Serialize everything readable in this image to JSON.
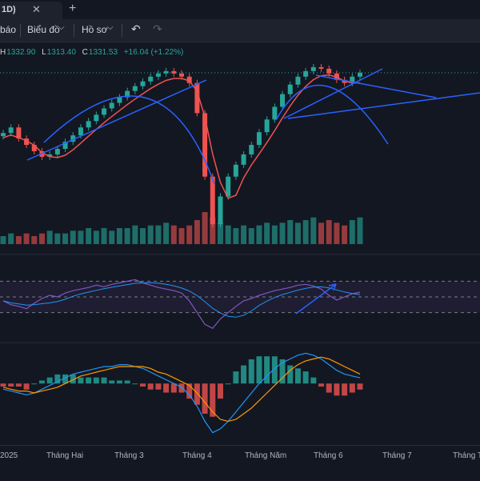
{
  "window": {
    "tab_label": "1D)",
    "close_glyph": "✕",
    "add_glyph": "+"
  },
  "toolbar": {
    "alerts_label": "báo",
    "charts_label": "Biểu đồ",
    "profile_label": "Hồ sơ",
    "chevron": "⌵",
    "undo_glyph": "↶",
    "redo_glyph": "↷"
  },
  "ohlc": {
    "h_key": "H",
    "h_val": "1332.90",
    "l_key": "L",
    "l_val": "1313.40",
    "c_key": "C",
    "c_val": "1331.53",
    "change": "+16.04 (+1.22%)"
  },
  "colors": {
    "up": "#26a69a",
    "down": "#ef5350",
    "trend": "#2962ff",
    "ma": "#ef5350",
    "rsi": "#7e57c2",
    "signal": "#ff9800",
    "macd": "#2196f3"
  },
  "chart_data": {
    "type": "candlestick",
    "x_ticks": [
      "2025",
      "Tháng Hai",
      "Tháng 3",
      "Tháng 4",
      "Tháng Năm",
      "Tháng 6",
      "Tháng 7",
      "Tháng Tá"
    ],
    "price_path": [
      1255,
      1262,
      1248,
      1240,
      1232,
      1225,
      1228,
      1235,
      1244,
      1252,
      1262,
      1270,
      1278,
      1286,
      1293,
      1300,
      1308,
      1314,
      1320,
      1326,
      1330,
      1333,
      1330,
      1326,
      1318,
      1280,
      1200,
      1140,
      1175,
      1200,
      1215,
      1228,
      1240,
      1256,
      1272,
      1288,
      1304,
      1316,
      1326,
      1333,
      1338,
      1336,
      1330,
      1322,
      1318,
      1326,
      1331
    ],
    "volume": [
      3,
      4,
      3,
      4,
      3,
      4,
      5,
      4,
      4,
      5,
      5,
      6,
      5,
      6,
      5,
      6,
      6,
      7,
      6,
      7,
      7,
      8,
      7,
      6,
      7,
      9,
      12,
      10,
      8,
      7,
      6,
      7,
      6,
      7,
      8,
      7,
      8,
      9,
      8,
      9,
      10,
      8,
      9,
      8,
      7,
      9,
      10
    ],
    "rsi": [
      45,
      40,
      38,
      35,
      42,
      48,
      52,
      50,
      55,
      58,
      60,
      62,
      65,
      63,
      66,
      68,
      70,
      72,
      68,
      65,
      62,
      60,
      58,
      55,
      45,
      30,
      15,
      10,
      22,
      30,
      38,
      45,
      48,
      52,
      55,
      58,
      60,
      62,
      65,
      66,
      64,
      60,
      52,
      46,
      50,
      54,
      56
    ],
    "macd": [
      -3,
      -4,
      -5,
      -6,
      -5,
      -3,
      -1,
      1,
      3,
      5,
      6,
      7,
      8,
      9,
      9,
      10,
      10,
      9,
      8,
      6,
      4,
      2,
      0,
      -2,
      -6,
      -12,
      -20,
      -26,
      -24,
      -20,
      -15,
      -10,
      -5,
      0,
      4,
      8,
      11,
      13,
      15,
      16,
      15,
      13,
      10,
      7,
      5,
      4,
      3
    ],
    "signal": [
      -2,
      -3,
      -4,
      -4,
      -5,
      -4,
      -3,
      -2,
      0,
      2,
      4,
      5,
      6,
      7,
      8,
      9,
      9,
      9,
      9,
      8,
      6,
      5,
      3,
      1,
      -1,
      -5,
      -10,
      -15,
      -19,
      -20,
      -19,
      -16,
      -13,
      -9,
      -5,
      -1,
      3,
      7,
      10,
      12,
      13,
      14,
      13,
      11,
      9,
      7,
      5
    ],
    "price_range": [
      1120,
      1350
    ],
    "rsi_range": [
      0,
      100
    ],
    "macd_range": [
      -30,
      20
    ]
  }
}
